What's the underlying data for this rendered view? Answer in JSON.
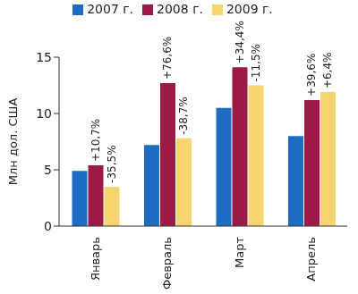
{
  "chart_data": {
    "type": "bar",
    "y_label": "Млн дол. США",
    "categories": [
      "Январь",
      "Февраль",
      "Март",
      "Апрель"
    ],
    "series": [
      {
        "name": "2007 г.",
        "color": "#1f6cc4",
        "values": [
          4.9,
          7.2,
          10.5,
          8.0
        ]
      },
      {
        "name": "2008 г.",
        "color": "#9c1a48",
        "values": [
          5.4,
          12.7,
          14.1,
          11.2
        ],
        "annotations": [
          "+10,7%",
          "+76,6%",
          "+34,4%",
          "+39,6%"
        ]
      },
      {
        "name": "2009 г.",
        "color": "#f6d56f",
        "values": [
          3.5,
          7.8,
          12.5,
          11.9
        ],
        "annotations": [
          "-35,5%",
          "-38,7%",
          "-11,5%",
          "+6,4%"
        ]
      }
    ],
    "ylim": [
      0,
      15
    ],
    "yticks": [
      0,
      5,
      10,
      15
    ],
    "grid": false,
    "legend": "top"
  }
}
